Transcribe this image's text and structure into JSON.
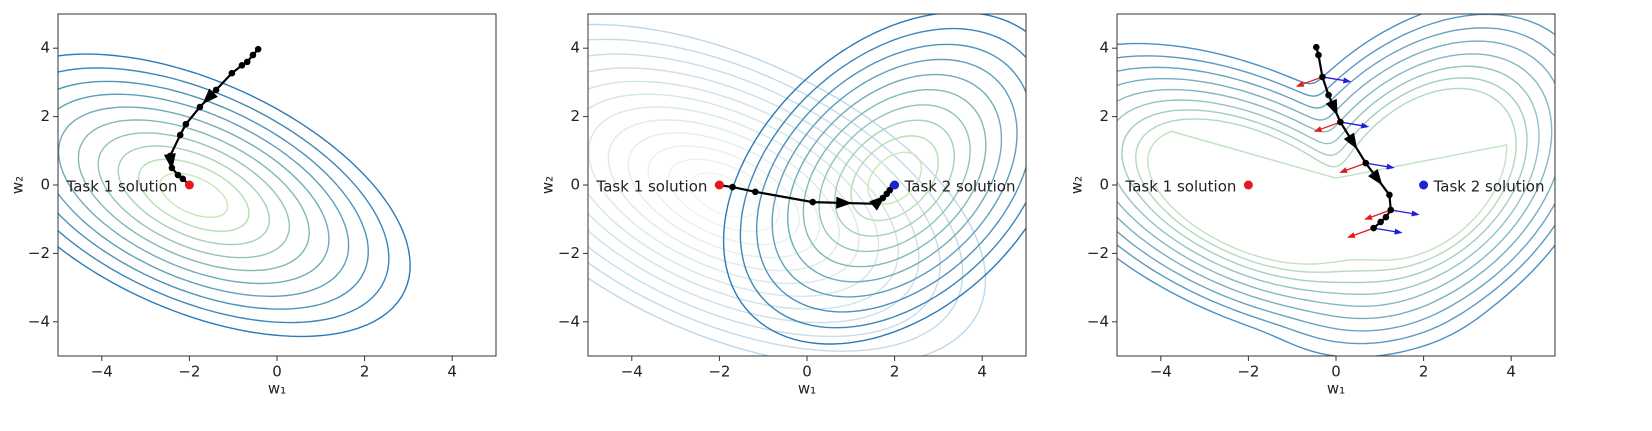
{
  "chart_data": [
    {
      "type": "line",
      "xlabel": "w₁",
      "ylabel": "w₂",
      "color": "#000000",
      "x": [
        -0.43,
        -0.55,
        -0.68,
        -0.8,
        -1.03,
        -1.39,
        -1.76,
        -2.08,
        -2.21,
        -2.44,
        -2.4,
        -2.26,
        -2.15,
        -2.0
      ],
      "values": [
        3.97,
        3.8,
        3.6,
        3.5,
        3.27,
        2.78,
        2.28,
        1.78,
        1.46,
        0.85,
        0.5,
        0.29,
        0.18,
        0.0
      ],
      "points": [
        {
          "x": -2,
          "y": 0,
          "label": "Task 1 solution",
          "color": "#e41a1c"
        }
      ],
      "xlim": [
        -5,
        5
      ],
      "ylim": [
        -5,
        5
      ],
      "xticks": [
        {
          "value": -4,
          "label": "−4"
        },
        {
          "value": -2,
          "label": "−2"
        },
        0,
        2,
        4
      ],
      "yticks": [
        {
          "value": -4,
          "label": "−4"
        },
        {
          "value": -2,
          "label": "−2"
        },
        0,
        2,
        4
      ]
    },
    {
      "type": "line",
      "xlabel": "w₁",
      "ylabel": "w₂",
      "color": "#000000",
      "x": [
        -2.03,
        -1.7,
        -1.18,
        0.13,
        1.57,
        1.73,
        1.82,
        1.89,
        1.96
      ],
      "values": [
        0.0,
        -0.06,
        -0.2,
        -0.5,
        -0.55,
        -0.38,
        -0.26,
        -0.15,
        -0.03
      ],
      "points": [
        {
          "x": -2,
          "y": 0,
          "label": "Task 1 solution",
          "color": "#e41a1c"
        },
        {
          "x": 2,
          "y": 0,
          "label": "Task 2 solution",
          "color": "#1f1fd6"
        }
      ],
      "xlim": [
        -5,
        5
      ],
      "ylim": [
        -5,
        5
      ],
      "xticks": [
        {
          "value": -4,
          "label": "−4"
        },
        {
          "value": -2,
          "label": "−2"
        },
        0,
        2,
        4
      ],
      "yticks": [
        {
          "value": -4,
          "label": "−4"
        },
        {
          "value": -2,
          "label": "−2"
        },
        0,
        2,
        4
      ]
    },
    {
      "type": "line",
      "xlabel": "w₁",
      "ylabel": "w₂",
      "color": "#000000",
      "x": [
        -0.45,
        -0.4,
        -0.31,
        -0.17,
        0.1,
        0.68,
        1.22,
        1.25,
        1.14,
        1.02,
        0.86
      ],
      "values": [
        4.03,
        3.8,
        3.16,
        2.63,
        1.84,
        0.64,
        -0.29,
        -0.73,
        -0.94,
        -1.08,
        -1.26
      ],
      "points": [
        {
          "x": -2,
          "y": 0,
          "label": "Task 1 solution",
          "color": "#e41a1c"
        },
        {
          "x": 2,
          "y": 0,
          "label": "Task 2 solution",
          "color": "#1f1fd6"
        }
      ],
      "xlim": [
        -5,
        5
      ],
      "ylim": [
        -5,
        5
      ],
      "xticks": [
        {
          "value": -4,
          "label": "−4"
        },
        {
          "value": -2,
          "label": "−2"
        },
        0,
        2,
        4
      ],
      "yticks": [
        {
          "value": -4,
          "label": "−4"
        },
        {
          "value": -2,
          "label": "−2"
        },
        0,
        2,
        4
      ]
    }
  ]
}
